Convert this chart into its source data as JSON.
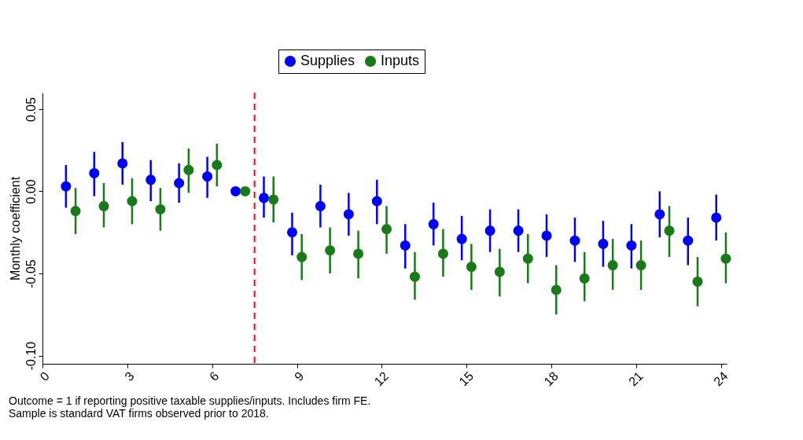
{
  "chart_data": {
    "type": "scatter",
    "ylabel": "Monthly coefficient",
    "xlim": [
      0,
      24.2
    ],
    "ylim": [
      -0.105,
      0.06
    ],
    "xticks": [
      0,
      3,
      6,
      9,
      12,
      15,
      18,
      21,
      24
    ],
    "yticks": [
      {
        "value": -0.1,
        "label": "-0.10"
      },
      -0.05,
      {
        "value": 0,
        "label": "0.00"
      },
      0.05
    ],
    "marker": "circle",
    "grid": false,
    "legend": "top",
    "ref_lines": [
      {
        "axis": "x",
        "value": 7.5,
        "color": "#ff0000",
        "line_style": "dashed"
      }
    ],
    "annotations": [
      "Outcome = 1 if reporting positive taxable supplies/inputs. Includes firm FE.",
      "Sample is standard VAT firms observed prior to 2018."
    ],
    "series": [
      {
        "name": "Supplies",
        "color": "#0000ff",
        "x": [
          0.83,
          1.83,
          2.83,
          3.83,
          4.83,
          5.83,
          6.83,
          7.83,
          8.83,
          9.83,
          10.83,
          11.83,
          12.83,
          13.83,
          14.83,
          15.83,
          16.83,
          17.83,
          18.83,
          19.83,
          20.83,
          21.83,
          22.83,
          23.83
        ],
        "values": [
          0.003,
          0.011,
          0.017,
          0.007,
          0.005,
          0.009,
          0,
          -0.004,
          -0.025,
          -0.009,
          -0.014,
          -0.006,
          -0.033,
          -0.02,
          -0.029,
          -0.024,
          -0.024,
          -0.027,
          -0.03,
          -0.032,
          -0.033,
          -0.014,
          -0.03,
          -0.016
        ],
        "errors": [
          [
            -0.01,
            0.016
          ],
          [
            -0.003,
            0.024
          ],
          [
            0.004,
            0.03
          ],
          [
            -0.006,
            0.019
          ],
          [
            -0.007,
            0.017
          ],
          [
            -0.004,
            0.021
          ],
          null,
          [
            -0.016,
            0.009
          ],
          [
            -0.039,
            -0.013
          ],
          [
            -0.022,
            0.004
          ],
          [
            -0.027,
            -0.001
          ],
          [
            -0.02,
            0.007
          ],
          [
            -0.047,
            -0.02
          ],
          [
            -0.033,
            -0.007
          ],
          [
            -0.042,
            -0.015
          ],
          [
            -0.037,
            -0.011
          ],
          [
            -0.037,
            -0.011
          ],
          [
            -0.04,
            -0.014
          ],
          [
            -0.043,
            -0.016
          ],
          [
            -0.046,
            -0.018
          ],
          [
            -0.047,
            -0.02
          ],
          [
            -0.028,
            0.0
          ],
          [
            -0.045,
            -0.016
          ],
          [
            -0.03,
            -0.002
          ]
        ]
      },
      {
        "name": "Inputs",
        "color": "#1a7a1a",
        "x": [
          1.17,
          2.17,
          3.17,
          4.17,
          5.17,
          6.17,
          7.17,
          8.17,
          9.17,
          10.17,
          11.17,
          12.17,
          13.17,
          14.17,
          15.17,
          16.17,
          17.17,
          18.17,
          19.17,
          20.17,
          21.17,
          22.17,
          23.17,
          24.17
        ],
        "values": [
          -0.012,
          -0.009,
          -0.006,
          -0.011,
          0.013,
          0.016,
          0,
          -0.005,
          -0.04,
          -0.036,
          -0.038,
          -0.023,
          -0.052,
          -0.038,
          -0.046,
          -0.049,
          -0.041,
          -0.06,
          -0.053,
          -0.045,
          -0.045,
          -0.024,
          -0.055,
          -0.041
        ],
        "errors": [
          [
            -0.026,
            0.002
          ],
          [
            -0.022,
            0.005
          ],
          [
            -0.02,
            0.008
          ],
          [
            -0.024,
            0.002
          ],
          [
            -0.001,
            0.026
          ],
          [
            0.003,
            0.029
          ],
          null,
          [
            -0.019,
            0.009
          ],
          [
            -0.054,
            -0.026
          ],
          [
            -0.05,
            -0.022
          ],
          [
            -0.053,
            -0.024
          ],
          [
            -0.038,
            -0.009
          ],
          [
            -0.066,
            -0.037
          ],
          [
            -0.052,
            -0.023
          ],
          [
            -0.06,
            -0.032
          ],
          [
            -0.064,
            -0.035
          ],
          [
            -0.056,
            -0.026
          ],
          [
            -0.075,
            -0.045
          ],
          [
            -0.067,
            -0.037
          ],
          [
            -0.06,
            -0.029
          ],
          [
            -0.06,
            -0.03
          ],
          [
            -0.04,
            -0.009
          ],
          [
            -0.07,
            -0.04
          ],
          [
            -0.056,
            -0.025
          ]
        ]
      }
    ]
  }
}
